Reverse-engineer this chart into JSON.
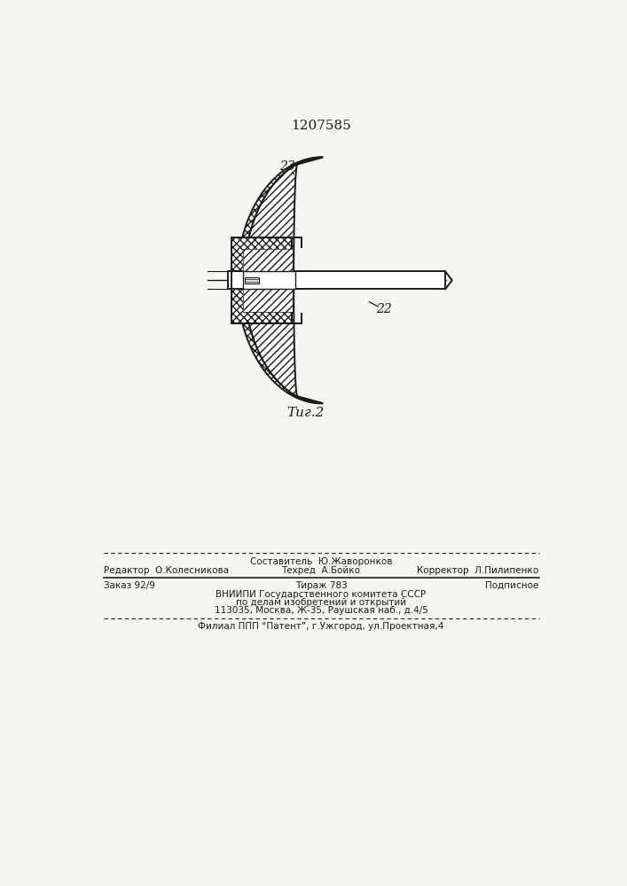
{
  "patent_number": "1207585",
  "fig_label": "Τиг.2",
  "label_23": "23",
  "label_22": "22",
  "bg_color": "#f7f5f0",
  "line_color": "#1a1a1a",
  "footer_line0": "Составитель  Ю.Жаворонков",
  "footer_line1_left": "Редактор  О.Колесникова",
  "footer_line1_mid": "Техред  А.Бойко",
  "footer_line1_right": "Корректор  Л.Пилипенко",
  "footer_line2_left": "Заказ 92/9",
  "footer_line2_mid": "Тираж 783",
  "footer_line2_right": "Подписное",
  "footer_line3": "ВНИИПИ Государственного комитета СССР",
  "footer_line4": "по делам изобретений и открытий",
  "footer_line5": "113035, Москва, Ж-35, Раушская наб., д.4/5",
  "footer_line6": "Филиал ППП “Патент”, г.Ужгород, ул.Проектная,4"
}
